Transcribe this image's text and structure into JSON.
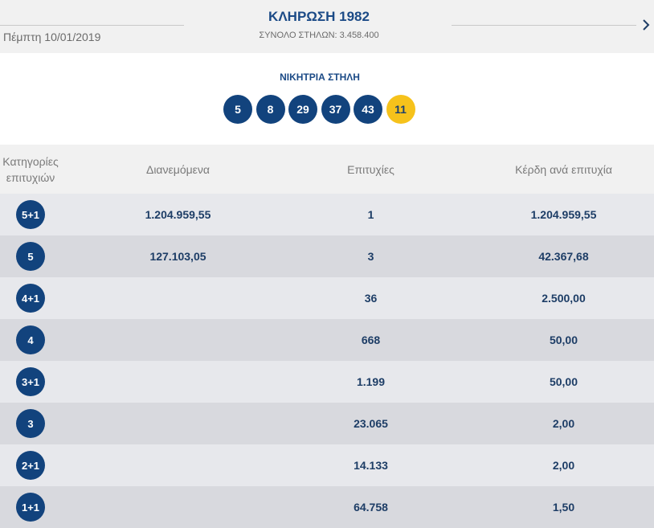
{
  "header": {
    "date": "Πέμπτη 10/01/2019",
    "title": "ΚΛΗΡΩΣΗ 1982",
    "subtitle": "ΣΥΝΟΛΟ ΣΤΗΛΩΝ: 3.458.400",
    "next_icon": "chevron-right-icon"
  },
  "winning": {
    "label": "ΝΙΚΗΤΡΙΑ ΣΤΗΛΗ",
    "numbers": [
      "5",
      "8",
      "29",
      "37",
      "43"
    ],
    "joker": "11",
    "colors": {
      "ball": "#12437d",
      "joker": "#f6c21b"
    }
  },
  "table": {
    "headers": {
      "category": "Κατηγορίες επιτυχιών",
      "distributed": "Διανεμόμενα",
      "successes": "Επιτυχίες",
      "gain": "Κέρδη ανά επιτυχία"
    },
    "rows": [
      {
        "category": "5+1",
        "distributed": "1.204.959,55",
        "successes": "1",
        "gain": "1.204.959,55"
      },
      {
        "category": "5",
        "distributed": "127.103,05",
        "successes": "3",
        "gain": "42.367,68"
      },
      {
        "category": "4+1",
        "distributed": "",
        "successes": "36",
        "gain": "2.500,00"
      },
      {
        "category": "4",
        "distributed": "",
        "successes": "668",
        "gain": "50,00"
      },
      {
        "category": "3+1",
        "distributed": "",
        "successes": "1.199",
        "gain": "50,00"
      },
      {
        "category": "3",
        "distributed": "",
        "successes": "23.065",
        "gain": "2,00"
      },
      {
        "category": "2+1",
        "distributed": "",
        "successes": "14.133",
        "gain": "2,00"
      },
      {
        "category": "1+1",
        "distributed": "",
        "successes": "64.758",
        "gain": "1,50"
      }
    ]
  }
}
